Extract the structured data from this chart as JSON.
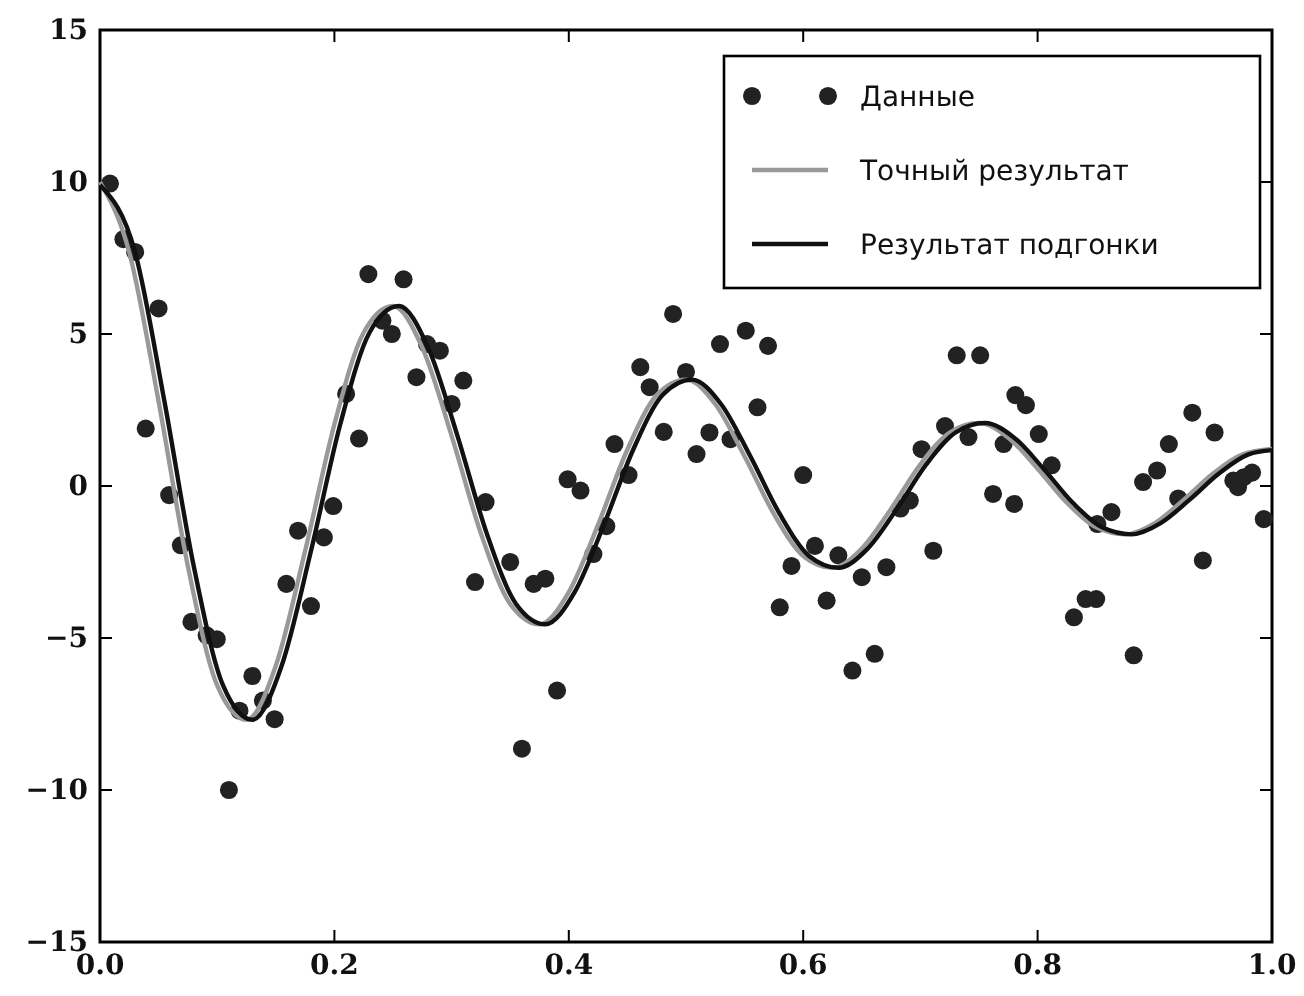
{
  "chart_data": {
    "type": "scatter",
    "xlim": [
      0,
      1
    ],
    "ylim": [
      -15,
      15
    ],
    "xticks": [
      {
        "value": 0,
        "label": "0.0"
      },
      {
        "value": 0.2,
        "label": "0.2"
      },
      {
        "value": 0.4,
        "label": "0.4"
      },
      {
        "value": 0.6,
        "label": "0.6"
      },
      {
        "value": 0.8,
        "label": "0.8"
      },
      {
        "value": 1,
        "label": "1.0"
      }
    ],
    "yticks": [
      {
        "value": -15,
        "label": "−15"
      },
      {
        "value": -10,
        "label": "−10"
      },
      {
        "value": -5,
        "label": "−5"
      },
      0,
      5,
      10,
      15
    ],
    "grid": false,
    "legend": "top right",
    "series": [
      {
        "name": "Данные",
        "marker": "circle",
        "color": "#222222",
        "x": [
          0.0085,
          0.02,
          0.03,
          0.039,
          0.05,
          0.059,
          0.069,
          0.078,
          0.091,
          0.0996,
          0.11,
          0.119,
          0.13,
          0.139,
          0.149,
          0.159,
          0.169,
          0.18,
          0.191,
          0.199,
          0.21,
          0.221,
          0.229,
          0.241,
          0.249,
          0.259,
          0.27,
          0.279,
          0.29,
          0.3,
          0.31,
          0.32,
          0.329,
          0.35,
          0.36,
          0.37,
          0.38,
          0.39,
          0.399,
          0.41,
          0.421,
          0.432,
          0.439,
          0.451,
          0.461,
          0.469,
          0.481,
          0.489,
          0.5,
          0.509,
          0.52,
          0.529,
          0.538,
          0.551,
          0.561,
          0.57,
          0.58,
          0.59,
          0.6,
          0.61,
          0.62,
          0.63,
          0.642,
          0.65,
          0.661,
          0.671,
          0.683,
          0.691,
          0.701,
          0.711,
          0.721,
          0.731,
          0.741,
          0.751,
          0.762,
          0.771,
          0.78,
          0.781,
          0.79,
          0.801,
          0.812,
          0.831,
          0.841,
          0.85,
          0.851,
          0.863,
          0.882,
          0.89,
          0.902,
          0.912,
          0.92,
          0.932,
          0.941,
          0.951,
          0.967,
          0.971,
          0.976,
          0.983,
          0.993
        ],
        "values": [
          9.95,
          8.12,
          7.7,
          1.89,
          5.84,
          -0.3,
          -1.95,
          -4.47,
          -4.91,
          -5.04,
          -10,
          -7.39,
          -6.25,
          -7.06,
          -7.67,
          -3.22,
          -1.47,
          -3.95,
          -1.69,
          -0.66,
          3.03,
          1.56,
          6.97,
          5.44,
          5,
          6.8,
          3.58,
          4.67,
          4.45,
          2.7,
          3.47,
          -3.16,
          -0.53,
          -2.5,
          -8.64,
          -3.22,
          -3.05,
          -6.73,
          0.22,
          -0.15,
          -2.24,
          -1.32,
          1.38,
          0.36,
          3.91,
          3.25,
          1.78,
          5.66,
          3.75,
          1.05,
          1.76,
          4.67,
          1.54,
          5.11,
          2.59,
          4.61,
          -3.99,
          -2.63,
          0.36,
          -1.97,
          -3.77,
          -2.28,
          -6.07,
          -3,
          -5.52,
          -2.67,
          -0.74,
          -0.48,
          1.21,
          -2.13,
          1.97,
          4.3,
          1.61,
          4.3,
          -0.26,
          1.38,
          -0.59,
          2.99,
          2.66,
          1.71,
          0.68,
          -4.32,
          -3.72,
          -3.72,
          -1.25,
          -0.86,
          -5.57,
          0.13,
          0.51,
          1.38,
          -0.41,
          2.41,
          -2.45,
          1.76,
          0.18,
          -0.04,
          0.29,
          0.44,
          -1.09
        ]
      },
      {
        "name": "Точный результат",
        "type": "line",
        "marker": "none",
        "line_style": "solid",
        "color": "#999999",
        "x": [
          0,
          0.025,
          0.05,
          0.075,
          0.1,
          0.125,
          0.15,
          0.175,
          0.2,
          0.225,
          0.25,
          0.275,
          0.3,
          0.325,
          0.35,
          0.375,
          0.4,
          0.425,
          0.45,
          0.475,
          0.5,
          0.525,
          0.55,
          0.575,
          0.6,
          0.625,
          0.65,
          0.675,
          0.7,
          0.725,
          0.75,
          0.775,
          0.8,
          0.825,
          0.85,
          0.875,
          0.9,
          0.925,
          0.95,
          0.975,
          1
        ],
        "values": [
          10,
          7.68,
          2.78,
          -2.64,
          -6.56,
          -7.69,
          -5.91,
          -2.14,
          2.03,
          5.05,
          5.92,
          4.55,
          1.65,
          -1.56,
          -3.88,
          -4.55,
          -3.49,
          -1.27,
          1.2,
          2.99,
          3.5,
          2.69,
          0.97,
          -0.92,
          -2.3,
          -2.69,
          -2.06,
          -0.75,
          0.71,
          1.76,
          2.07,
          1.59,
          0.57,
          -0.55,
          -1.36,
          -1.59,
          -1.22,
          -0.44,
          0.42,
          1.04,
          1.22
        ]
      },
      {
        "name": "Результат подгонки",
        "type": "line",
        "marker": "none",
        "line_style": "solid",
        "color": "#111111",
        "x": [
          0,
          0.03,
          0.055,
          0.08,
          0.105,
          0.13,
          0.155,
          0.18,
          0.205,
          0.23,
          0.255,
          0.28,
          0.305,
          0.33,
          0.355,
          0.38,
          0.405,
          0.43,
          0.455,
          0.48,
          0.505,
          0.53,
          0.555,
          0.58,
          0.605,
          0.63,
          0.655,
          0.68,
          0.705,
          0.73,
          0.755,
          0.78,
          0.805,
          0.83,
          0.855,
          0.88,
          0.905,
          0.93,
          0.955,
          0.98,
          1
        ],
        "values": [
          9.9,
          7.68,
          2.78,
          -2.64,
          -6.56,
          -7.69,
          -5.91,
          -2.14,
          2.03,
          5.05,
          5.92,
          4.55,
          1.65,
          -1.56,
          -3.88,
          -4.55,
          -3.49,
          -1.27,
          1.2,
          2.99,
          3.5,
          2.69,
          0.97,
          -0.92,
          -2.3,
          -2.69,
          -2.06,
          -0.75,
          0.71,
          1.76,
          2.07,
          1.59,
          0.57,
          -0.55,
          -1.36,
          -1.59,
          -1.22,
          -0.44,
          0.42,
          1.04,
          1.18
        ]
      }
    ]
  }
}
